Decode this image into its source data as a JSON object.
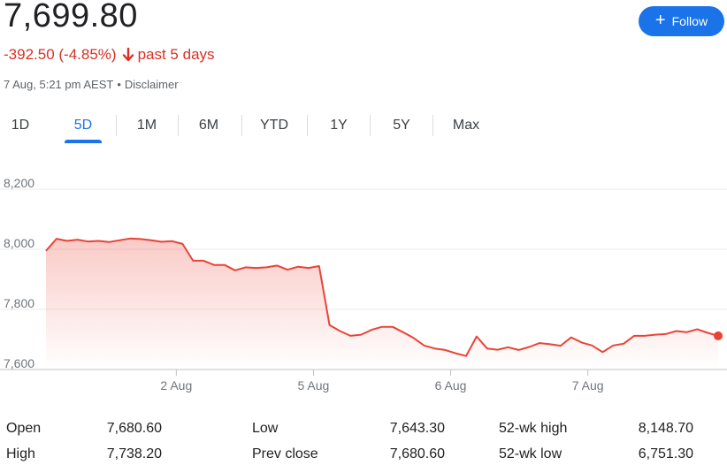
{
  "header": {
    "price": "7,699.80",
    "change": "-392.50 (-4.85%)",
    "period": "past 5 days",
    "timestamp": "7 Aug, 5:21 pm AEST",
    "separator": "•",
    "disclaimer": "Disclaimer",
    "down_color": "#d93025"
  },
  "follow": {
    "icon": "plus-icon",
    "label": "Follow",
    "color": "#1a73e8"
  },
  "tabs": [
    "1D",
    "5D",
    "1M",
    "6M",
    "YTD",
    "1Y",
    "5Y",
    "Max"
  ],
  "active_tab": "5D",
  "chart_data": {
    "type": "area",
    "color": "#ea4335",
    "ylim": [
      7600,
      8200
    ],
    "yticks": [
      8200,
      8000,
      7800,
      7600
    ],
    "ytick_labels": [
      "8,200",
      "8,000",
      "7,800",
      "7,600"
    ],
    "xticks": [
      {
        "label": "2 Aug",
        "at": 9.5
      },
      {
        "label": "5 Aug",
        "at": 19.5
      },
      {
        "label": "6 Aug",
        "at": 29.5
      },
      {
        "label": "7 Aug",
        "at": 39.5
      }
    ],
    "x_total": 49,
    "values": [
      7995,
      8035,
      8028,
      8032,
      8026,
      8028,
      8024,
      8030,
      8036,
      8034,
      8030,
      8025,
      8027,
      8018,
      7962,
      7962,
      7948,
      7948,
      7930,
      7940,
      7938,
      7940,
      7946,
      7932,
      7942,
      7938,
      7944,
      7748,
      7728,
      7712,
      7716,
      7732,
      7742,
      7742,
      7724,
      7705,
      7680,
      7670,
      7665,
      7654,
      7645,
      7710,
      7670,
      7666,
      7674,
      7665,
      7675,
      7688,
      7684,
      7679,
      7707,
      7690,
      7680,
      7658,
      7680,
      7686,
      7712,
      7712,
      7716,
      7718,
      7728,
      7724,
      7734,
      7722,
      7712
    ],
    "grid": true
  },
  "stats": [
    {
      "label": "Open",
      "value": "7,680.60"
    },
    {
      "label": "High",
      "value": "7,738.20"
    },
    {
      "label": "Low",
      "value": "7,643.30"
    },
    {
      "label": "Prev close",
      "value": "7,680.60"
    },
    {
      "label": "52-wk high",
      "value": "8,148.70"
    },
    {
      "label": "52-wk low",
      "value": "6,751.30"
    }
  ]
}
